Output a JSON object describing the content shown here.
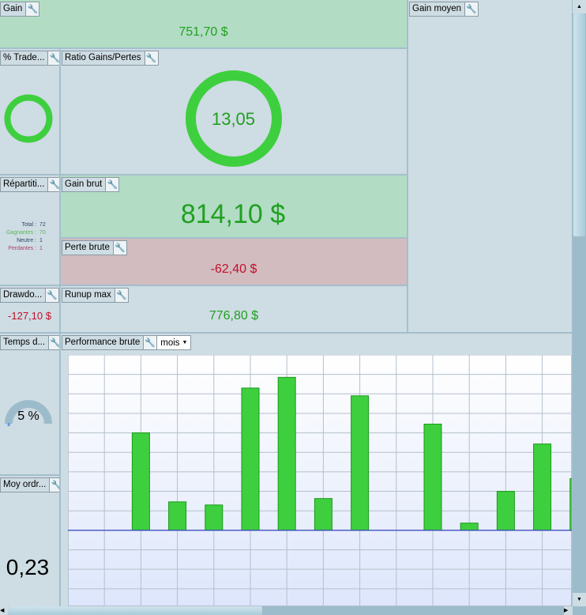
{
  "gain": {
    "title": "Gain",
    "value": "751,70 $"
  },
  "gain_moyen": {
    "title": "Gain moyen"
  },
  "pct_trades": {
    "title": "% Trade...",
    "winning_fraction": 0.972
  },
  "ratio": {
    "title": "Ratio Gains/Pertes",
    "value": "13,05",
    "gain_fraction": 0.929,
    "colors": {
      "gain": "#3ecf3e",
      "loss": "#e03a3a"
    }
  },
  "repartition": {
    "title": "Répartiti...",
    "rows": [
      {
        "label": "Total :",
        "value": "72",
        "color": "#334466"
      },
      {
        "label": "Gagnantes :",
        "value": "70",
        "color": "#5bb85b"
      },
      {
        "label": "Neutre :",
        "value": "1",
        "color": "#334466"
      },
      {
        "label": "Perdantes :",
        "value": "1",
        "color": "#b0406a"
      }
    ]
  },
  "gain_brut": {
    "title": "Gain brut",
    "value": "814,10 $"
  },
  "perte_brute": {
    "title": "Perte brute",
    "value": "-62,40 $"
  },
  "drawdown": {
    "title": "Drawdo...",
    "value": "-127,10 $"
  },
  "runup": {
    "title": "Runup max",
    "value": "776,80 $"
  },
  "temps": {
    "title": "Temps d...",
    "value": "5 %",
    "fraction": 0.05
  },
  "moy_ordres": {
    "title": "Moy ordr...",
    "value": "0,23"
  },
  "performance": {
    "title": "Performance brute",
    "period": "mois"
  },
  "chart_data": {
    "type": "bar",
    "values": [
      5.0,
      1.46,
      1.3,
      7.3,
      7.85,
      1.63,
      6.9,
      0,
      5.45,
      0.37,
      2.0,
      4.43,
      2.65
    ],
    "ylim": [
      -3.9,
      9.0
    ],
    "grid": true,
    "bar_color": "#3ecf3e"
  }
}
